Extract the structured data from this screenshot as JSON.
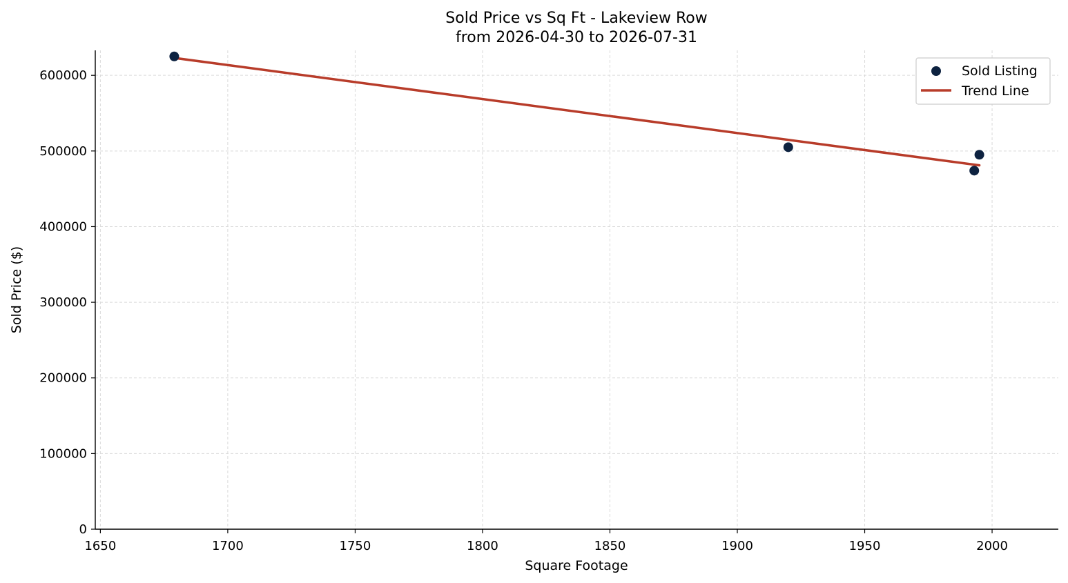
{
  "chart_data": {
    "type": "scatter",
    "title_line1": "Sold Price vs Sq Ft - Lakeview Row",
    "title_line2": "from 2026-04-30 to 2026-07-31",
    "xlabel": "Square Footage",
    "ylabel": "Sold Price ($)",
    "xlim": [
      1648,
      2026
    ],
    "ylim": [
      0,
      633000
    ],
    "x_ticks": [
      1650,
      1700,
      1750,
      1800,
      1850,
      1900,
      1950,
      2000
    ],
    "x_tick_labels": [
      "1650",
      "1700",
      "1750",
      "1800",
      "1850",
      "1900",
      "1950",
      "2000"
    ],
    "y_ticks": [
      0,
      100000,
      200000,
      300000,
      400000,
      500000,
      600000
    ],
    "y_tick_labels": [
      "0",
      "100000",
      "200000",
      "300000",
      "400000",
      "500000",
      "600000"
    ],
    "grid": true,
    "legend_position": "top-right",
    "series": [
      {
        "name": "Sold Listing",
        "kind": "scatter",
        "color": "#0d2240",
        "points": [
          {
            "x": 1679,
            "y": 625000
          },
          {
            "x": 1920,
            "y": 505000
          },
          {
            "x": 1993,
            "y": 474000
          },
          {
            "x": 1995,
            "y": 495000
          }
        ]
      },
      {
        "name": "Trend Line",
        "kind": "line",
        "color": "#b83c2a",
        "points": [
          {
            "x": 1679,
            "y": 623000
          },
          {
            "x": 1995,
            "y": 481000
          }
        ]
      }
    ]
  }
}
